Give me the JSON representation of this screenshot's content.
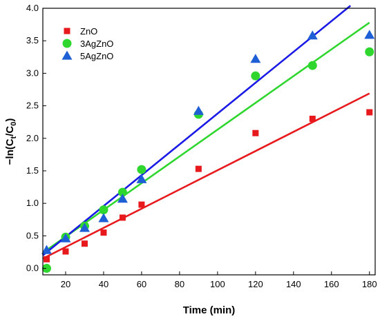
{
  "chart_data": {
    "type": "scatter",
    "xlabel": "Time (min)",
    "ylabel_main": "−ln(C",
    "ylabel_sub1": "t",
    "ylabel_mid": "/C",
    "ylabel_sub2": "0",
    "ylabel_end": ")",
    "xlim": [
      8,
      183
    ],
    "ylim": [
      -0.1,
      4.0
    ],
    "xticks": [
      20,
      40,
      60,
      80,
      100,
      120,
      140,
      160,
      180
    ],
    "yticks": [
      0.0,
      0.5,
      1.0,
      1.5,
      2.0,
      2.5,
      3.0,
      3.5,
      4.0
    ],
    "ytick_labels": [
      "0.0",
      "0.5",
      "1.0",
      "1.5",
      "2.0",
      "2.5",
      "3.0",
      "3.5",
      "4.0"
    ],
    "grid": false,
    "legend_position": "top-left",
    "series": [
      {
        "name": "ZnO",
        "marker": "square",
        "color": "#e8191c",
        "x": [
          10,
          20,
          30,
          40,
          50,
          60,
          90,
          120,
          150,
          180
        ],
        "y": [
          0.14,
          0.26,
          0.38,
          0.55,
          0.78,
          0.98,
          1.53,
          2.08,
          2.3,
          2.4
        ],
        "fit": {
          "x": [
            8,
            180
          ],
          "y": [
            0.15,
            2.69
          ]
        }
      },
      {
        "name": "3AgZnO",
        "marker": "circle",
        "color": "#2ed62e",
        "x": [
          10,
          20,
          30,
          40,
          50,
          60,
          90,
          120,
          150,
          180
        ],
        "y": [
          0.0,
          0.48,
          0.65,
          0.9,
          1.17,
          1.52,
          2.37,
          2.96,
          3.12,
          3.33
        ],
        "fit": {
          "x": [
            8,
            180
          ],
          "y": [
            0.24,
            3.78
          ]
        }
      },
      {
        "name": "5AgZnO",
        "marker": "triangle",
        "color": "#1f5fd6",
        "x": [
          10,
          20,
          30,
          40,
          50,
          60,
          90,
          120,
          150,
          180
        ],
        "y": [
          0.28,
          0.46,
          0.62,
          0.77,
          1.07,
          1.37,
          2.42,
          3.22,
          3.58,
          3.59
        ],
        "fit": {
          "x": [
            8,
            170
          ],
          "y": [
            0.2,
            4.04
          ]
        },
        "fit_line_color": "#1a1ae6"
      }
    ]
  }
}
